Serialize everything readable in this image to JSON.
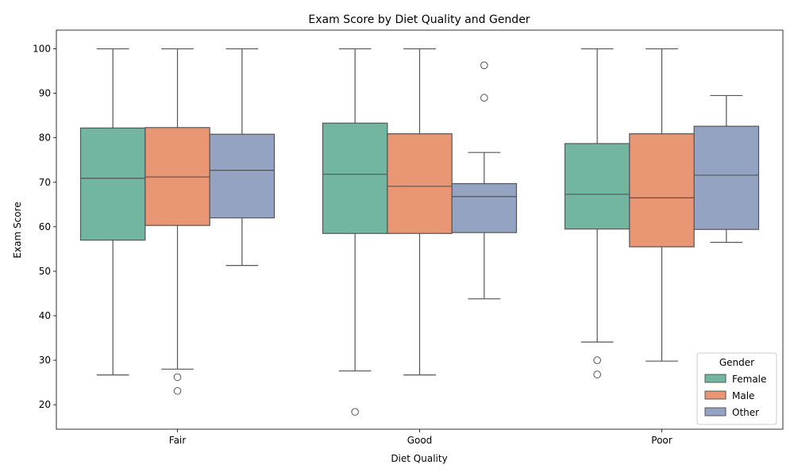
{
  "chart_data": {
    "type": "box",
    "title": "Exam Score by Diet Quality and Gender",
    "xlabel": "Diet Quality",
    "ylabel": "Exam Score",
    "categories": [
      "Fair",
      "Good",
      "Poor"
    ],
    "ylim": [
      14.5,
      104.2
    ],
    "yticks": [
      20,
      30,
      40,
      50,
      60,
      70,
      80,
      90,
      100
    ],
    "legend": {
      "title": "Gender",
      "position": "lower-right"
    },
    "series": [
      {
        "name": "Female",
        "color": "#72b6a1",
        "boxes": [
          {
            "category": "Fair",
            "whisker_low": 26.7,
            "q1": 57.0,
            "median": 70.9,
            "q3": 82.2,
            "whisker_high": 100.0,
            "outliers": []
          },
          {
            "category": "Good",
            "whisker_low": 27.6,
            "q1": 58.5,
            "median": 71.8,
            "q3": 83.3,
            "whisker_high": 100.0,
            "outliers": [
              18.4
            ]
          },
          {
            "category": "Poor",
            "whisker_low": 34.1,
            "q1": 59.5,
            "median": 67.3,
            "q3": 78.7,
            "whisker_high": 100.0,
            "outliers": [
              30.0,
              26.8
            ]
          }
        ]
      },
      {
        "name": "Male",
        "color": "#e99675",
        "boxes": [
          {
            "category": "Fair",
            "whisker_low": 28.0,
            "q1": 60.3,
            "median": 71.2,
            "q3": 82.3,
            "whisker_high": 100.0,
            "outliers": [
              26.2,
              23.1
            ]
          },
          {
            "category": "Good",
            "whisker_low": 26.7,
            "q1": 58.5,
            "median": 69.1,
            "q3": 80.9,
            "whisker_high": 100.0,
            "outliers": []
          },
          {
            "category": "Poor",
            "whisker_low": 29.8,
            "q1": 55.5,
            "median": 66.5,
            "q3": 80.9,
            "whisker_high": 100.0,
            "outliers": []
          }
        ]
      },
      {
        "name": "Other",
        "color": "#95a3c3",
        "boxes": [
          {
            "category": "Fair",
            "whisker_low": 51.3,
            "q1": 62.0,
            "median": 72.7,
            "q3": 80.8,
            "whisker_high": 100.0,
            "outliers": []
          },
          {
            "category": "Good",
            "whisker_low": 43.8,
            "q1": 58.7,
            "median": 66.8,
            "q3": 69.7,
            "whisker_high": 76.7,
            "outliers": [
              96.3,
              89.0
            ]
          },
          {
            "category": "Poor",
            "whisker_low": 56.5,
            "q1": 59.4,
            "median": 71.6,
            "q3": 82.6,
            "whisker_high": 89.5,
            "outliers": []
          }
        ]
      }
    ]
  }
}
